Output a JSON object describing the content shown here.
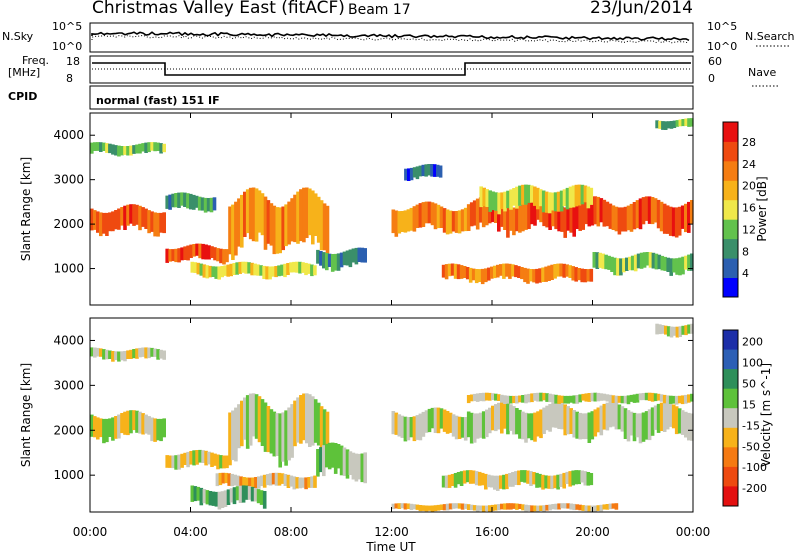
{
  "header": {
    "title": "Christmas Valley East (fitACF)",
    "beam": "Beam 17",
    "date": "23/Jun/2014"
  },
  "top_panels": {
    "nsky_label": "N.Sky",
    "nsky_ticks": [
      "10^5",
      "10^0"
    ],
    "nsearch_label": "N.Search",
    "nsearch_ticks": [
      "10^5",
      "10^0"
    ],
    "freq_label": [
      "Freq.",
      "[MHz]"
    ],
    "freq_ticks": [
      "18",
      "8"
    ],
    "nave_label": "Nave",
    "nave_ticks": [
      "60",
      "0"
    ],
    "cpid_label": "CPID",
    "cpid_text": "normal (fast) 151 IF"
  },
  "colors": {
    "power": [
      "#0000ff",
      "#2b5fb0",
      "#3a8f6a",
      "#62c24d",
      "#f0e84a",
      "#f7b21a",
      "#f57d12",
      "#ef4a10",
      "#e81010"
    ],
    "velocity": [
      "#1c2ea8",
      "#2c5fb5",
      "#2e8f5a",
      "#5ec23a",
      "#c8c8be",
      "#f7b21a",
      "#f57a12",
      "#ee4a10",
      "#e41010"
    ]
  },
  "chart_data": [
    {
      "type": "heatmap",
      "name": "power",
      "ylabel": "Slant Range [km]",
      "yticks": [
        1000,
        2000,
        3000,
        4000
      ],
      "ylim": [
        180,
        4500
      ],
      "xticks": [
        "00:00",
        "04:00",
        "08:00",
        "12:00",
        "16:00",
        "20:00",
        "00:00"
      ],
      "xlim_hours": [
        0,
        24
      ],
      "colorbar_label": "Power [dB]",
      "colorbar_ticks": [
        "4",
        "8",
        "12",
        "16",
        "20",
        "24",
        "28"
      ],
      "bands": [
        {
          "t": [
            0,
            3
          ],
          "r0": 1800,
          "r1": 2350,
          "level": 7
        },
        {
          "t": [
            3,
            5.5
          ],
          "r0": 1150,
          "r1": 1500,
          "level": 7
        },
        {
          "t": [
            5.5,
            9.5
          ],
          "r0": 1350,
          "r1": 2600,
          "level": 6
        },
        {
          "t": [
            3,
            5
          ],
          "r0": 2300,
          "r1": 2650,
          "level": 2
        },
        {
          "t": [
            0,
            3
          ],
          "r0": 3550,
          "r1": 3800,
          "level": 3
        },
        {
          "t": [
            4,
            9
          ],
          "r0": 800,
          "r1": 1100,
          "level": 4
        },
        {
          "t": [
            9,
            11
          ],
          "r0": 1000,
          "r1": 1400,
          "level": 2
        },
        {
          "t": [
            12,
            15
          ],
          "r0": 1800,
          "r1": 2400,
          "level": 6
        },
        {
          "t": [
            12.5,
            14
          ],
          "r0": 3000,
          "r1": 3300,
          "level": 1
        },
        {
          "t": [
            15,
            24
          ],
          "r0": 1800,
          "r1": 2500,
          "level": 7
        },
        {
          "t": [
            14,
            20
          ],
          "r0": 700,
          "r1": 1050,
          "level": 6
        },
        {
          "t": [
            20,
            24
          ],
          "r0": 900,
          "r1": 1300,
          "level": 3
        },
        {
          "t": [
            15.5,
            20
          ],
          "r0": 2300,
          "r1": 2800,
          "level": 4
        },
        {
          "t": [
            22.5,
            24
          ],
          "r0": 4150,
          "r1": 4350,
          "level": 3
        }
      ]
    },
    {
      "type": "heatmap",
      "name": "velocity",
      "ylabel": "Slant Range [km]",
      "yticks": [
        1000,
        2000,
        3000,
        4000
      ],
      "ylim": [
        180,
        4500
      ],
      "xticks": [
        "00:00",
        "04:00",
        "08:00",
        "12:00",
        "16:00",
        "20:00",
        "00:00"
      ],
      "xlim_hours": [
        0,
        24
      ],
      "xlabel": "Time UT",
      "colorbar_label": "Velocity [m s^-1]",
      "colorbar_ticks": [
        "200",
        "100",
        "50",
        "15",
        "-15",
        "-50",
        "-100",
        "-200"
      ],
      "bands": [
        {
          "t": [
            0,
            3
          ],
          "r0": 1800,
          "r1": 2350,
          "level": 4
        },
        {
          "t": [
            3,
            5.5
          ],
          "r0": 1150,
          "r1": 1500,
          "level": 4
        },
        {
          "t": [
            5.5,
            9.5
          ],
          "r0": 1350,
          "r1": 2600,
          "level": 4
        },
        {
          "t": [
            9,
            11
          ],
          "r0": 900,
          "r1": 1600,
          "level": 3
        },
        {
          "t": [
            5,
            9
          ],
          "r0": 700,
          "r1": 1000,
          "level": 5
        },
        {
          "t": [
            4,
            7
          ],
          "r0": 300,
          "r1": 700,
          "level": 3
        },
        {
          "t": [
            12,
            15
          ],
          "r0": 1800,
          "r1": 2400,
          "level": 4
        },
        {
          "t": [
            15,
            24
          ],
          "r0": 1800,
          "r1": 2500,
          "level": 4
        },
        {
          "t": [
            14,
            20
          ],
          "r0": 700,
          "r1": 1050,
          "level": 4
        },
        {
          "t": [
            15,
            24
          ],
          "r0": 2600,
          "r1": 2800,
          "level": 4
        },
        {
          "t": [
            12,
            21
          ],
          "r0": 200,
          "r1": 350,
          "level": 5
        },
        {
          "t": [
            0,
            3
          ],
          "r0": 3550,
          "r1": 3800,
          "level": 4
        },
        {
          "t": [
            22.5,
            24
          ],
          "r0": 4100,
          "r1": 4350,
          "level": 4
        }
      ]
    }
  ]
}
